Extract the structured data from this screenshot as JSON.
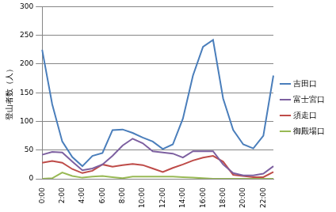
{
  "chart_data": {
    "type": "line",
    "y_label": "登山者数（人）",
    "categories": [
      "0:00",
      null,
      "2:00",
      null,
      "4:00",
      null,
      "6:00",
      null,
      "8:00",
      null,
      "10:00",
      null,
      "12:00",
      null,
      "14:00",
      null,
      "16:00",
      null,
      "18:00",
      null,
      "20:00",
      null,
      "22:00",
      null
    ],
    "series": [
      {
        "name": "吉田口",
        "color": "#4a7ebb",
        "values": [
          225,
          130,
          65,
          38,
          22,
          40,
          45,
          85,
          86,
          80,
          72,
          65,
          52,
          60,
          105,
          180,
          230,
          242,
          140,
          85,
          60,
          53,
          75,
          180
        ]
      },
      {
        "name": "富士宮口",
        "color": "#7d60a0",
        "values": [
          42,
          47,
          46,
          30,
          15,
          18,
          25,
          40,
          58,
          70,
          62,
          48,
          46,
          44,
          37,
          48,
          48,
          48,
          25,
          10,
          6,
          6,
          9,
          22
        ]
      },
      {
        "name": "須走口",
        "color": "#be4b48",
        "values": [
          28,
          31,
          28,
          17,
          10,
          14,
          25,
          21,
          24,
          26,
          24,
          18,
          12,
          19,
          25,
          32,
          37,
          40,
          30,
          7,
          5,
          3,
          3,
          12
        ]
      },
      {
        "name": "御殿場口",
        "color": "#98b954",
        "values": [
          0,
          1,
          11,
          5,
          2,
          4,
          5,
          3,
          1,
          4,
          4,
          4,
          4,
          4,
          3,
          2,
          1,
          0,
          0,
          0,
          0,
          0,
          0,
          0
        ]
      }
    ],
    "ylim": [
      0,
      300
    ],
    "yticks": [
      0,
      50,
      100,
      150,
      200,
      250,
      300
    ],
    "grid": true,
    "legend": "right",
    "line_style": "solid"
  }
}
